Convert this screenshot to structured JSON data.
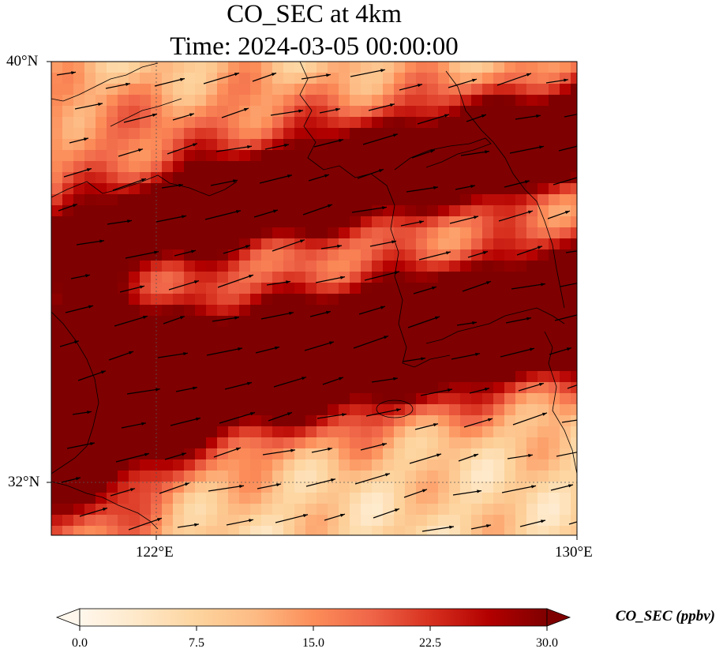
{
  "title_line1": "CO_SEC at 4km",
  "title_line2": "Time: 2024-03-05 00:00:00",
  "axes": {
    "lat_ticks": [
      "40°N",
      "32°N"
    ],
    "lon_ticks": [
      "122°E",
      "130°E"
    ],
    "lat_range": [
      31,
      40
    ],
    "lon_range": [
      120,
      130
    ],
    "gridlines": "dotted"
  },
  "colorbar": {
    "label": "CO_SEC (ppbv)",
    "ticks": [
      "0.0",
      "7.5",
      "15.0",
      "22.5",
      "30.0"
    ],
    "range": [
      0,
      30
    ],
    "extend": "both",
    "colormap": "OrRd",
    "colors": [
      "#fff7ec",
      "#fee8c8",
      "#fdd49e",
      "#fdbb84",
      "#fc8d59",
      "#ef6548",
      "#d7301f",
      "#b30000",
      "#7f0000"
    ]
  },
  "wind_vectors": "wind arrows overlaid, predominantly pointing east-northeast"
}
